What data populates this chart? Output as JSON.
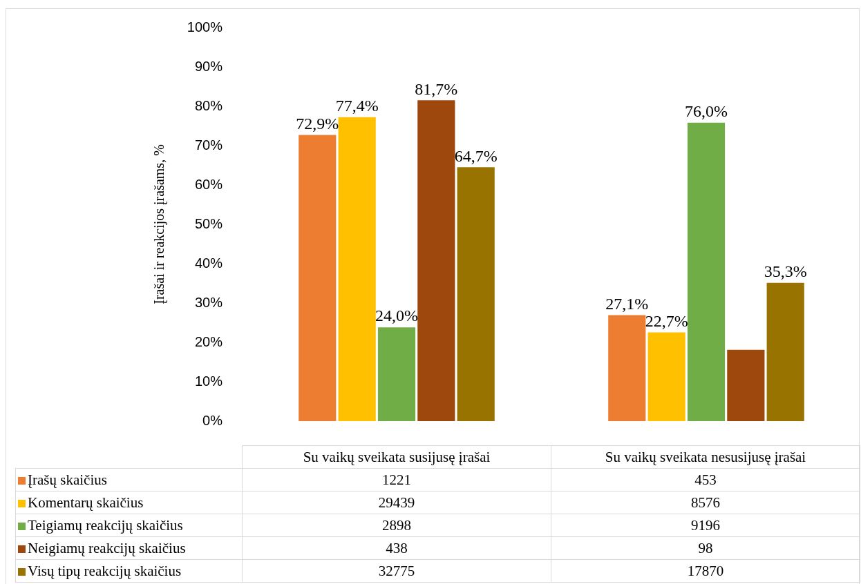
{
  "chart_data": {
    "type": "bar",
    "ylabel": "Įrašai ir reakcijos įrašams, %",
    "categories": [
      "Su vaikų sveikata susijusę įrašai",
      "Su vaikų sveikata nesusijusę įrašai"
    ],
    "series": [
      {
        "name": "Įrašų skaičius",
        "color": "#ed7d31",
        "values": [
          72.9,
          27.1
        ],
        "value_labels": [
          "72,9%",
          "27,1%"
        ]
      },
      {
        "name": "Komentarų skaičius",
        "color": "#ffc000",
        "values": [
          77.4,
          22.7
        ],
        "value_labels": [
          "77,4%",
          "22,7%"
        ]
      },
      {
        "name": "Teigiamų reakcijų skaičius",
        "color": "#70ad47",
        "values": [
          24.0,
          76.0
        ],
        "value_labels": [
          "24,0%",
          "76,0%"
        ]
      },
      {
        "name": "Neigiamų reakcijų skaičius",
        "color": "#9e480e",
        "values": [
          81.7,
          18.3
        ],
        "value_labels": [
          "81,7%",
          null
        ]
      },
      {
        "name": "Visų tipų reakcijų skaičius",
        "color": "#997300",
        "values": [
          64.7,
          35.3
        ],
        "value_labels": [
          "64,7%",
          "35,3%"
        ]
      }
    ],
    "ylim": [
      0,
      100
    ],
    "yticks": [
      {
        "value": 0,
        "label": "0%"
      },
      {
        "value": 10,
        "label": "10%"
      },
      {
        "value": 20,
        "label": "20%"
      },
      {
        "value": 30,
        "label": "30%"
      },
      {
        "value": 40,
        "label": "40%"
      },
      {
        "value": 50,
        "label": "50%"
      },
      {
        "value": 60,
        "label": "60%"
      },
      {
        "value": 70,
        "label": "70%"
      },
      {
        "value": 80,
        "label": "80%"
      },
      {
        "value": 90,
        "label": "90%"
      },
      {
        "value": 100,
        "label": "100%"
      }
    ],
    "grid": false,
    "legend": "bottom left",
    "annotations": [
      "1221",
      "453",
      "29439",
      "8576",
      "2898",
      "9196",
      "438",
      "98",
      "32775",
      "17870"
    ]
  }
}
